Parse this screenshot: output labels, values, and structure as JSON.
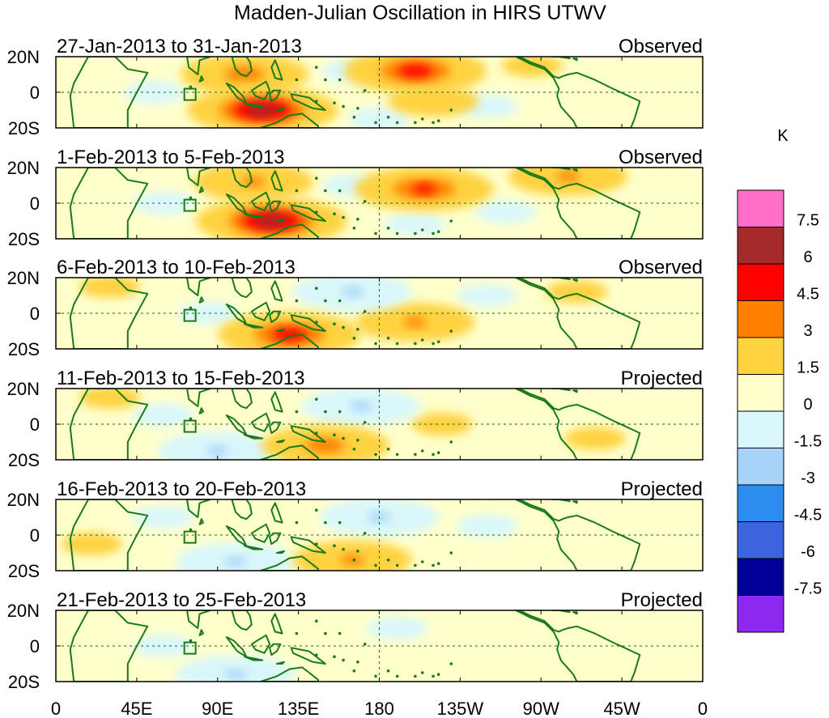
{
  "chart_data": {
    "type": "heatmap",
    "title": "Madden-Julian Oscillation in HIRS UTWV",
    "units": "K",
    "x_ticks": [
      "0",
      "45E",
      "90E",
      "135E",
      "180",
      "135W",
      "90W",
      "45W",
      "0"
    ],
    "y_ticks": [
      "20N",
      "0",
      "20S"
    ],
    "xlim_deg_east": [
      0,
      360
    ],
    "ylim_lat": [
      -20,
      20
    ],
    "colorbar": {
      "levels": [
        "7.5",
        "6",
        "4.5",
        "3",
        "1.5",
        "0",
        "-1.5",
        "-3",
        "-4.5",
        "-6",
        "-7.5"
      ],
      "colors": [
        "#ff6ec7",
        "#a52a2a",
        "#ff0000",
        "#ff7f00",
        "#ffd23f",
        "#ffffcc",
        "#d9f7fb",
        "#a6d3f7",
        "#2d8cf0",
        "#3c64dc",
        "#000096",
        "#8c28f0"
      ]
    },
    "panels": [
      {
        "period": "27-Jan-2013 to 31-Jan-2013",
        "label": "Observed",
        "anomalies": [
          {
            "lon": 115,
            "lat": -10,
            "value": 6.5
          },
          {
            "lon": 105,
            "lat": 10,
            "value": 3.5
          },
          {
            "lon": 200,
            "lat": 12,
            "value": 5.0
          },
          {
            "lon": 210,
            "lat": -5,
            "value": 2.0
          },
          {
            "lon": 265,
            "lat": 15,
            "value": 1.5
          },
          {
            "lon": 55,
            "lat": 0,
            "value": -1.5
          },
          {
            "lon": 180,
            "lat": -15,
            "value": -1.5
          },
          {
            "lon": 240,
            "lat": -8,
            "value": -1.5
          },
          {
            "lon": 165,
            "lat": 12,
            "value": -1.5
          }
        ]
      },
      {
        "period": "1-Feb-2013 to 5-Feb-2013",
        "label": "Observed",
        "anomalies": [
          {
            "lon": 120,
            "lat": -10,
            "value": 6.5
          },
          {
            "lon": 110,
            "lat": 12,
            "value": 3.0
          },
          {
            "lon": 205,
            "lat": 8,
            "value": 4.5
          },
          {
            "lon": 285,
            "lat": 15,
            "value": 3.0
          },
          {
            "lon": 165,
            "lat": 10,
            "value": -1.5
          },
          {
            "lon": 200,
            "lat": -12,
            "value": -1.5
          },
          {
            "lon": 60,
            "lat": 0,
            "value": -1.5
          },
          {
            "lon": 250,
            "lat": -5,
            "value": -1.5
          }
        ]
      },
      {
        "period": "6-Feb-2013 to 10-Feb-2013",
        "label": "Observed",
        "anomalies": [
          {
            "lon": 130,
            "lat": -12,
            "value": 5.0
          },
          {
            "lon": 200,
            "lat": -5,
            "value": 3.0
          },
          {
            "lon": 165,
            "lat": 12,
            "value": -3.0
          },
          {
            "lon": 85,
            "lat": 0,
            "value": -1.5
          },
          {
            "lon": 30,
            "lat": 15,
            "value": 1.5
          },
          {
            "lon": 290,
            "lat": 12,
            "value": 1.5
          },
          {
            "lon": 240,
            "lat": 10,
            "value": -1.5
          }
        ]
      },
      {
        "period": "11-Feb-2013 to 15-Feb-2013",
        "label": "Projected",
        "anomalies": [
          {
            "lon": 150,
            "lat": -12,
            "value": 3.5
          },
          {
            "lon": 170,
            "lat": 10,
            "value": -3.0
          },
          {
            "lon": 90,
            "lat": -15,
            "value": -3.0
          },
          {
            "lon": 215,
            "lat": 0,
            "value": 1.5
          },
          {
            "lon": 60,
            "lat": 5,
            "value": -1.5
          },
          {
            "lon": 300,
            "lat": -8,
            "value": 1.5
          },
          {
            "lon": 30,
            "lat": 15,
            "value": 1.5
          }
        ]
      },
      {
        "period": "16-Feb-2013 to 20-Feb-2013",
        "label": "Projected",
        "anomalies": [
          {
            "lon": 180,
            "lat": 10,
            "value": -3.0
          },
          {
            "lon": 100,
            "lat": -15,
            "value": -3.0
          },
          {
            "lon": 165,
            "lat": -14,
            "value": 3.0
          },
          {
            "lon": 20,
            "lat": -5,
            "value": 1.5
          },
          {
            "lon": 60,
            "lat": 10,
            "value": -1.5
          },
          {
            "lon": 240,
            "lat": 5,
            "value": -1.5
          }
        ]
      },
      {
        "period": "21-Feb-2013 to 25-Feb-2013",
        "label": "Projected",
        "anomalies": [
          {
            "lon": 190,
            "lat": 10,
            "value": -1.5
          },
          {
            "lon": 100,
            "lat": -16,
            "value": -3.0
          },
          {
            "lon": 60,
            "lat": 0,
            "value": -1.5
          },
          {
            "lon": 240,
            "lat": -5,
            "value": 1.0
          },
          {
            "lon": 30,
            "lat": 5,
            "value": 1.0
          }
        ]
      }
    ]
  }
}
